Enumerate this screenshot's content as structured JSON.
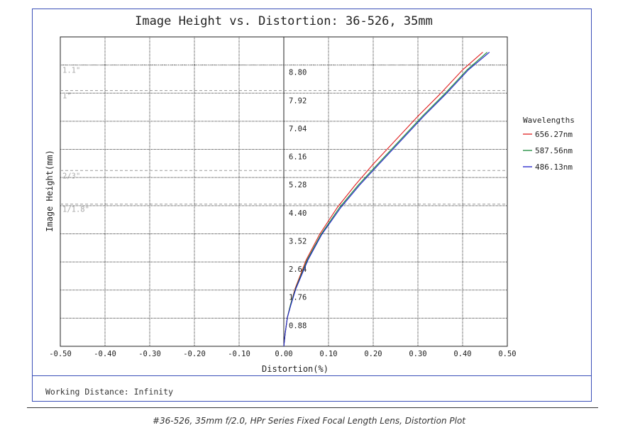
{
  "caption": "#36-526, 35mm f/2.0, HPr Series Fixed Focal Length Lens, Distortion Plot",
  "footer": {
    "working_distance": "Working Distance: Infinity"
  },
  "chart_data": {
    "type": "line",
    "title": "Image Height vs. Distortion: 36-526, 35mm",
    "xlabel": "Distortion(%)",
    "ylabel": "Image Height(mm)",
    "xlim": [
      -0.5,
      0.5
    ],
    "ylim": [
      0,
      9.68
    ],
    "grid": true,
    "x_ticks": [
      "-0.50",
      "-0.40",
      "-0.30",
      "-0.20",
      "-0.10",
      "0.00",
      "0.10",
      "0.20",
      "0.30",
      "0.40",
      "0.50"
    ],
    "y_ticks": [
      "0.88",
      "1.76",
      "2.64",
      "3.52",
      "4.40",
      "5.28",
      "6.16",
      "7.04",
      "7.92",
      "8.80"
    ],
    "sensor_formats": [
      {
        "label": "1.1\"",
        "y": 8.8
      },
      {
        "label": "1\"",
        "y": 8.0
      },
      {
        "label": "2/3\"",
        "y": 5.5
      },
      {
        "label": "1/1.8\"",
        "y": 4.45
      }
    ],
    "legend": {
      "title": "Wavelengths",
      "position": "right"
    },
    "series": [
      {
        "name": "656.27nm",
        "color": "#e02020",
        "x": [
          0.0,
          0.003,
          0.008,
          0.015,
          0.025,
          0.05,
          0.08,
          0.12,
          0.16,
          0.2,
          0.25,
          0.3,
          0.35,
          0.4,
          0.445
        ],
        "y": [
          0.0,
          0.4,
          0.9,
          1.3,
          1.8,
          2.7,
          3.5,
          4.35,
          5.05,
          5.7,
          6.45,
          7.2,
          7.9,
          8.65,
          9.2
        ]
      },
      {
        "name": "587.56nm",
        "color": "#1a8a3a",
        "x": [
          0.0,
          0.003,
          0.008,
          0.015,
          0.026,
          0.052,
          0.083,
          0.125,
          0.167,
          0.21,
          0.26,
          0.31,
          0.36,
          0.41,
          0.455
        ],
        "y": [
          0.0,
          0.4,
          0.9,
          1.3,
          1.8,
          2.7,
          3.5,
          4.35,
          5.05,
          5.7,
          6.45,
          7.2,
          7.9,
          8.65,
          9.2
        ]
      },
      {
        "name": "486.13nm",
        "color": "#2020c8",
        "x": [
          0.0,
          0.003,
          0.008,
          0.016,
          0.027,
          0.054,
          0.085,
          0.128,
          0.17,
          0.213,
          0.263,
          0.313,
          0.363,
          0.413,
          0.46
        ],
        "y": [
          0.0,
          0.4,
          0.9,
          1.3,
          1.8,
          2.7,
          3.5,
          4.35,
          5.05,
          5.7,
          6.45,
          7.2,
          7.9,
          8.65,
          9.2
        ]
      }
    ]
  }
}
